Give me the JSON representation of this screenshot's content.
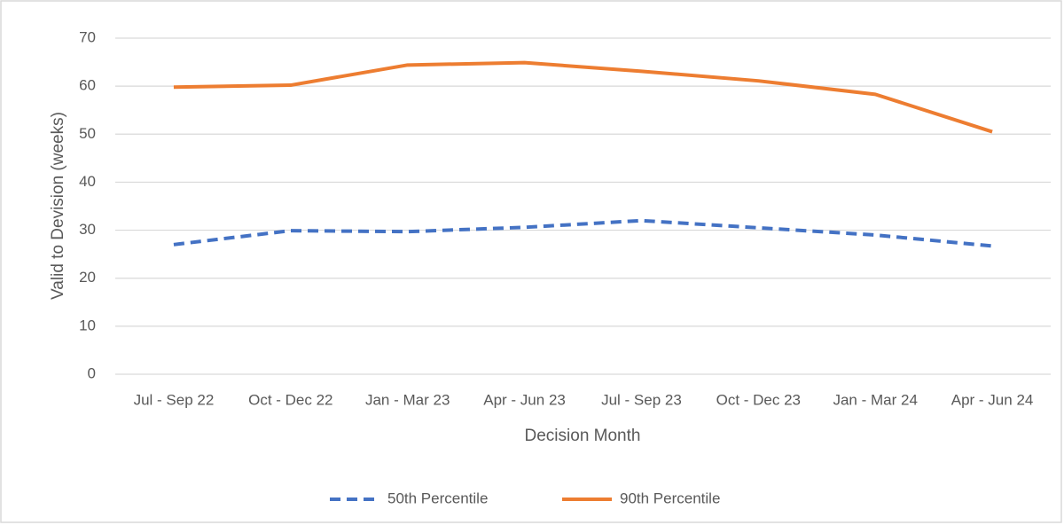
{
  "chart_data": {
    "type": "line",
    "y_label": "Valid to Devision (weeks)",
    "x_label": "Decision Month",
    "categories": [
      "Jul - Sep 22",
      "Oct - Dec 22",
      "Jan - Mar 23",
      "Apr - Jun 23",
      "Jul - Sep 23",
      "Oct - Dec 23",
      "Jan - Mar 24",
      "Apr - Jun 24"
    ],
    "series": [
      {
        "name": "50th Percentile",
        "color": "#4472c4",
        "linestyle": "dashed",
        "values": [
          27.0,
          29.9,
          29.7,
          30.6,
          32.0,
          30.5,
          29.0,
          26.7
        ]
      },
      {
        "name": "90th Percentile",
        "color": "#ed7d31",
        "linestyle": "solid",
        "values": [
          59.8,
          60.2,
          64.4,
          64.9,
          63.1,
          61.1,
          58.3,
          50.5
        ]
      }
    ],
    "ylim": [
      0,
      70
    ],
    "yticks": [
      0,
      10,
      20,
      30,
      40,
      50,
      60,
      70
    ],
    "grid": true,
    "legend": "bottom"
  }
}
